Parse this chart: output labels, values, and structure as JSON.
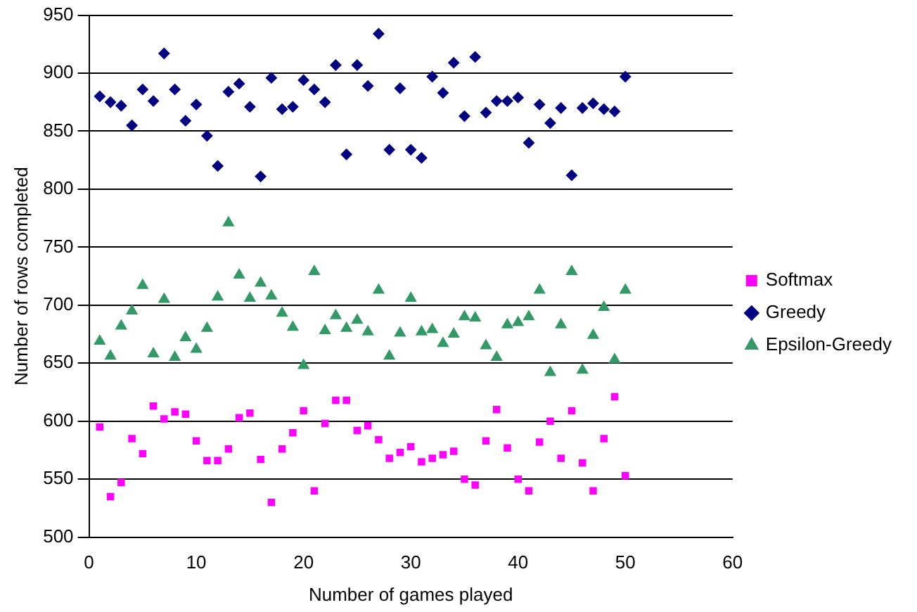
{
  "chart_data": {
    "type": "scatter",
    "xlabel": "Number of games played",
    "ylabel": "Number of rows completed",
    "x": [
      1,
      2,
      3,
      4,
      5,
      6,
      7,
      8,
      9,
      10,
      11,
      12,
      13,
      14,
      15,
      16,
      17,
      18,
      19,
      20,
      21,
      22,
      23,
      24,
      25,
      26,
      27,
      28,
      29,
      30,
      31,
      32,
      33,
      34,
      35,
      36,
      37,
      38,
      39,
      40,
      41,
      42,
      43,
      44,
      45,
      46,
      47,
      48,
      49,
      50
    ],
    "xlim": [
      0,
      60
    ],
    "xticks": [
      0,
      10,
      20,
      30,
      40,
      50,
      60
    ],
    "ylim": [
      500,
      950
    ],
    "yticks": [
      500,
      550,
      600,
      650,
      700,
      750,
      800,
      850,
      900,
      950
    ],
    "grid": "y",
    "legend": "right",
    "series": [
      {
        "name": "Softmax",
        "color": "#ff00ff",
        "marker": "square",
        "values": [
          595,
          535,
          547,
          585,
          572,
          613,
          602,
          608,
          606,
          583,
          566,
          566,
          576,
          603,
          607,
          567,
          530,
          576,
          590,
          609,
          540,
          598,
          618,
          618,
          592,
          596,
          584,
          568,
          573,
          578,
          565,
          568,
          571,
          574,
          550,
          545,
          583,
          610,
          577,
          550,
          540,
          582,
          600,
          568,
          609,
          564,
          540,
          585,
          621,
          553
        ]
      },
      {
        "name": "Greedy",
        "color": "#000080",
        "marker": "diamond",
        "values": [
          880,
          875,
          872,
          855,
          886,
          876,
          917,
          886,
          859,
          873,
          846,
          820,
          884,
          891,
          871,
          811,
          896,
          869,
          871,
          894,
          886,
          875,
          907,
          830,
          907,
          889,
          934,
          834,
          887,
          834,
          827,
          897,
          883,
          909,
          863,
          914,
          866,
          876,
          876,
          879,
          840,
          873,
          857,
          870,
          812,
          870,
          874,
          869,
          867,
          897
        ]
      },
      {
        "name": "Epsilon-Greedy",
        "color": "#339966",
        "marker": "triangle",
        "values": [
          669,
          656,
          682,
          695,
          717,
          658,
          705,
          655,
          672,
          662,
          680,
          707,
          771,
          726,
          706,
          719,
          708,
          693,
          681,
          648,
          729,
          678,
          691,
          680,
          687,
          677,
          713,
          656,
          676,
          706,
          677,
          679,
          667,
          675,
          690,
          689,
          665,
          655,
          683,
          685,
          690,
          713,
          642,
          683,
          729,
          644,
          674,
          698,
          653,
          713
        ]
      }
    ]
  }
}
